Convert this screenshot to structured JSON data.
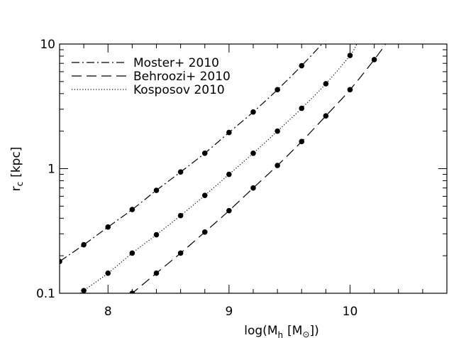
{
  "chart_data": {
    "type": "line",
    "xlabel": "log(M",
    "xlabel_sub": "h",
    "xlabel_unit_open": "[M",
    "xlabel_unit_sub": "⊙",
    "xlabel_unit_close": "])",
    "ylabel": "r",
    "ylabel_sub": "c",
    "ylabel_unit": "[kpc]",
    "xlim": [
      7.6,
      10.8
    ],
    "ylim": [
      0.1,
      10
    ],
    "yscale": "log",
    "grid": false,
    "legend_position": "top-left",
    "x_ticks": [
      {
        "value": 8,
        "label": "8"
      },
      {
        "value": 9,
        "label": "9"
      },
      {
        "value": 10,
        "label": "10"
      }
    ],
    "y_ticks": [
      {
        "value": 0.1,
        "label": "0.1"
      },
      {
        "value": 1,
        "label": "1"
      },
      {
        "value": 10,
        "label": "10"
      }
    ],
    "series": [
      {
        "name": "Moster+ 2010",
        "dash": "dashdot",
        "points": [
          [
            7.6,
            0.18
          ],
          [
            7.8,
            0.245
          ],
          [
            8.0,
            0.34
          ],
          [
            8.2,
            0.47
          ],
          [
            8.4,
            0.67
          ],
          [
            8.6,
            0.94
          ],
          [
            8.8,
            1.33
          ],
          [
            9.0,
            1.95
          ],
          [
            9.2,
            2.85
          ],
          [
            9.4,
            4.3
          ],
          [
            9.6,
            6.7
          ]
        ],
        "curve_end": [
          9.8,
          10.8
        ]
      },
      {
        "name": "Behroozi+ 2010",
        "dash": "dashed",
        "points": [
          [
            8.2,
            0.1
          ],
          [
            8.4,
            0.145
          ],
          [
            8.6,
            0.21
          ],
          [
            8.8,
            0.31
          ],
          [
            9.0,
            0.46
          ],
          [
            9.2,
            0.7
          ],
          [
            9.4,
            1.06
          ],
          [
            9.6,
            1.65
          ],
          [
            9.8,
            2.65
          ],
          [
            10.0,
            4.3
          ],
          [
            10.2,
            7.5
          ]
        ],
        "curve_end": [
          10.3,
          10.2
        ]
      },
      {
        "name": "Kosposov 2010",
        "dash": "dotted",
        "points": [
          [
            7.8,
            0.105
          ],
          [
            8.0,
            0.145
          ],
          [
            8.2,
            0.21
          ],
          [
            8.4,
            0.295
          ],
          [
            8.6,
            0.42
          ],
          [
            8.8,
            0.61
          ],
          [
            9.0,
            0.9
          ],
          [
            9.2,
            1.33
          ],
          [
            9.4,
            2.0
          ],
          [
            9.6,
            3.05
          ],
          [
            9.8,
            4.8
          ],
          [
            10.0,
            8.1
          ]
        ],
        "curve_end": [
          10.06,
          10.2
        ]
      }
    ]
  }
}
